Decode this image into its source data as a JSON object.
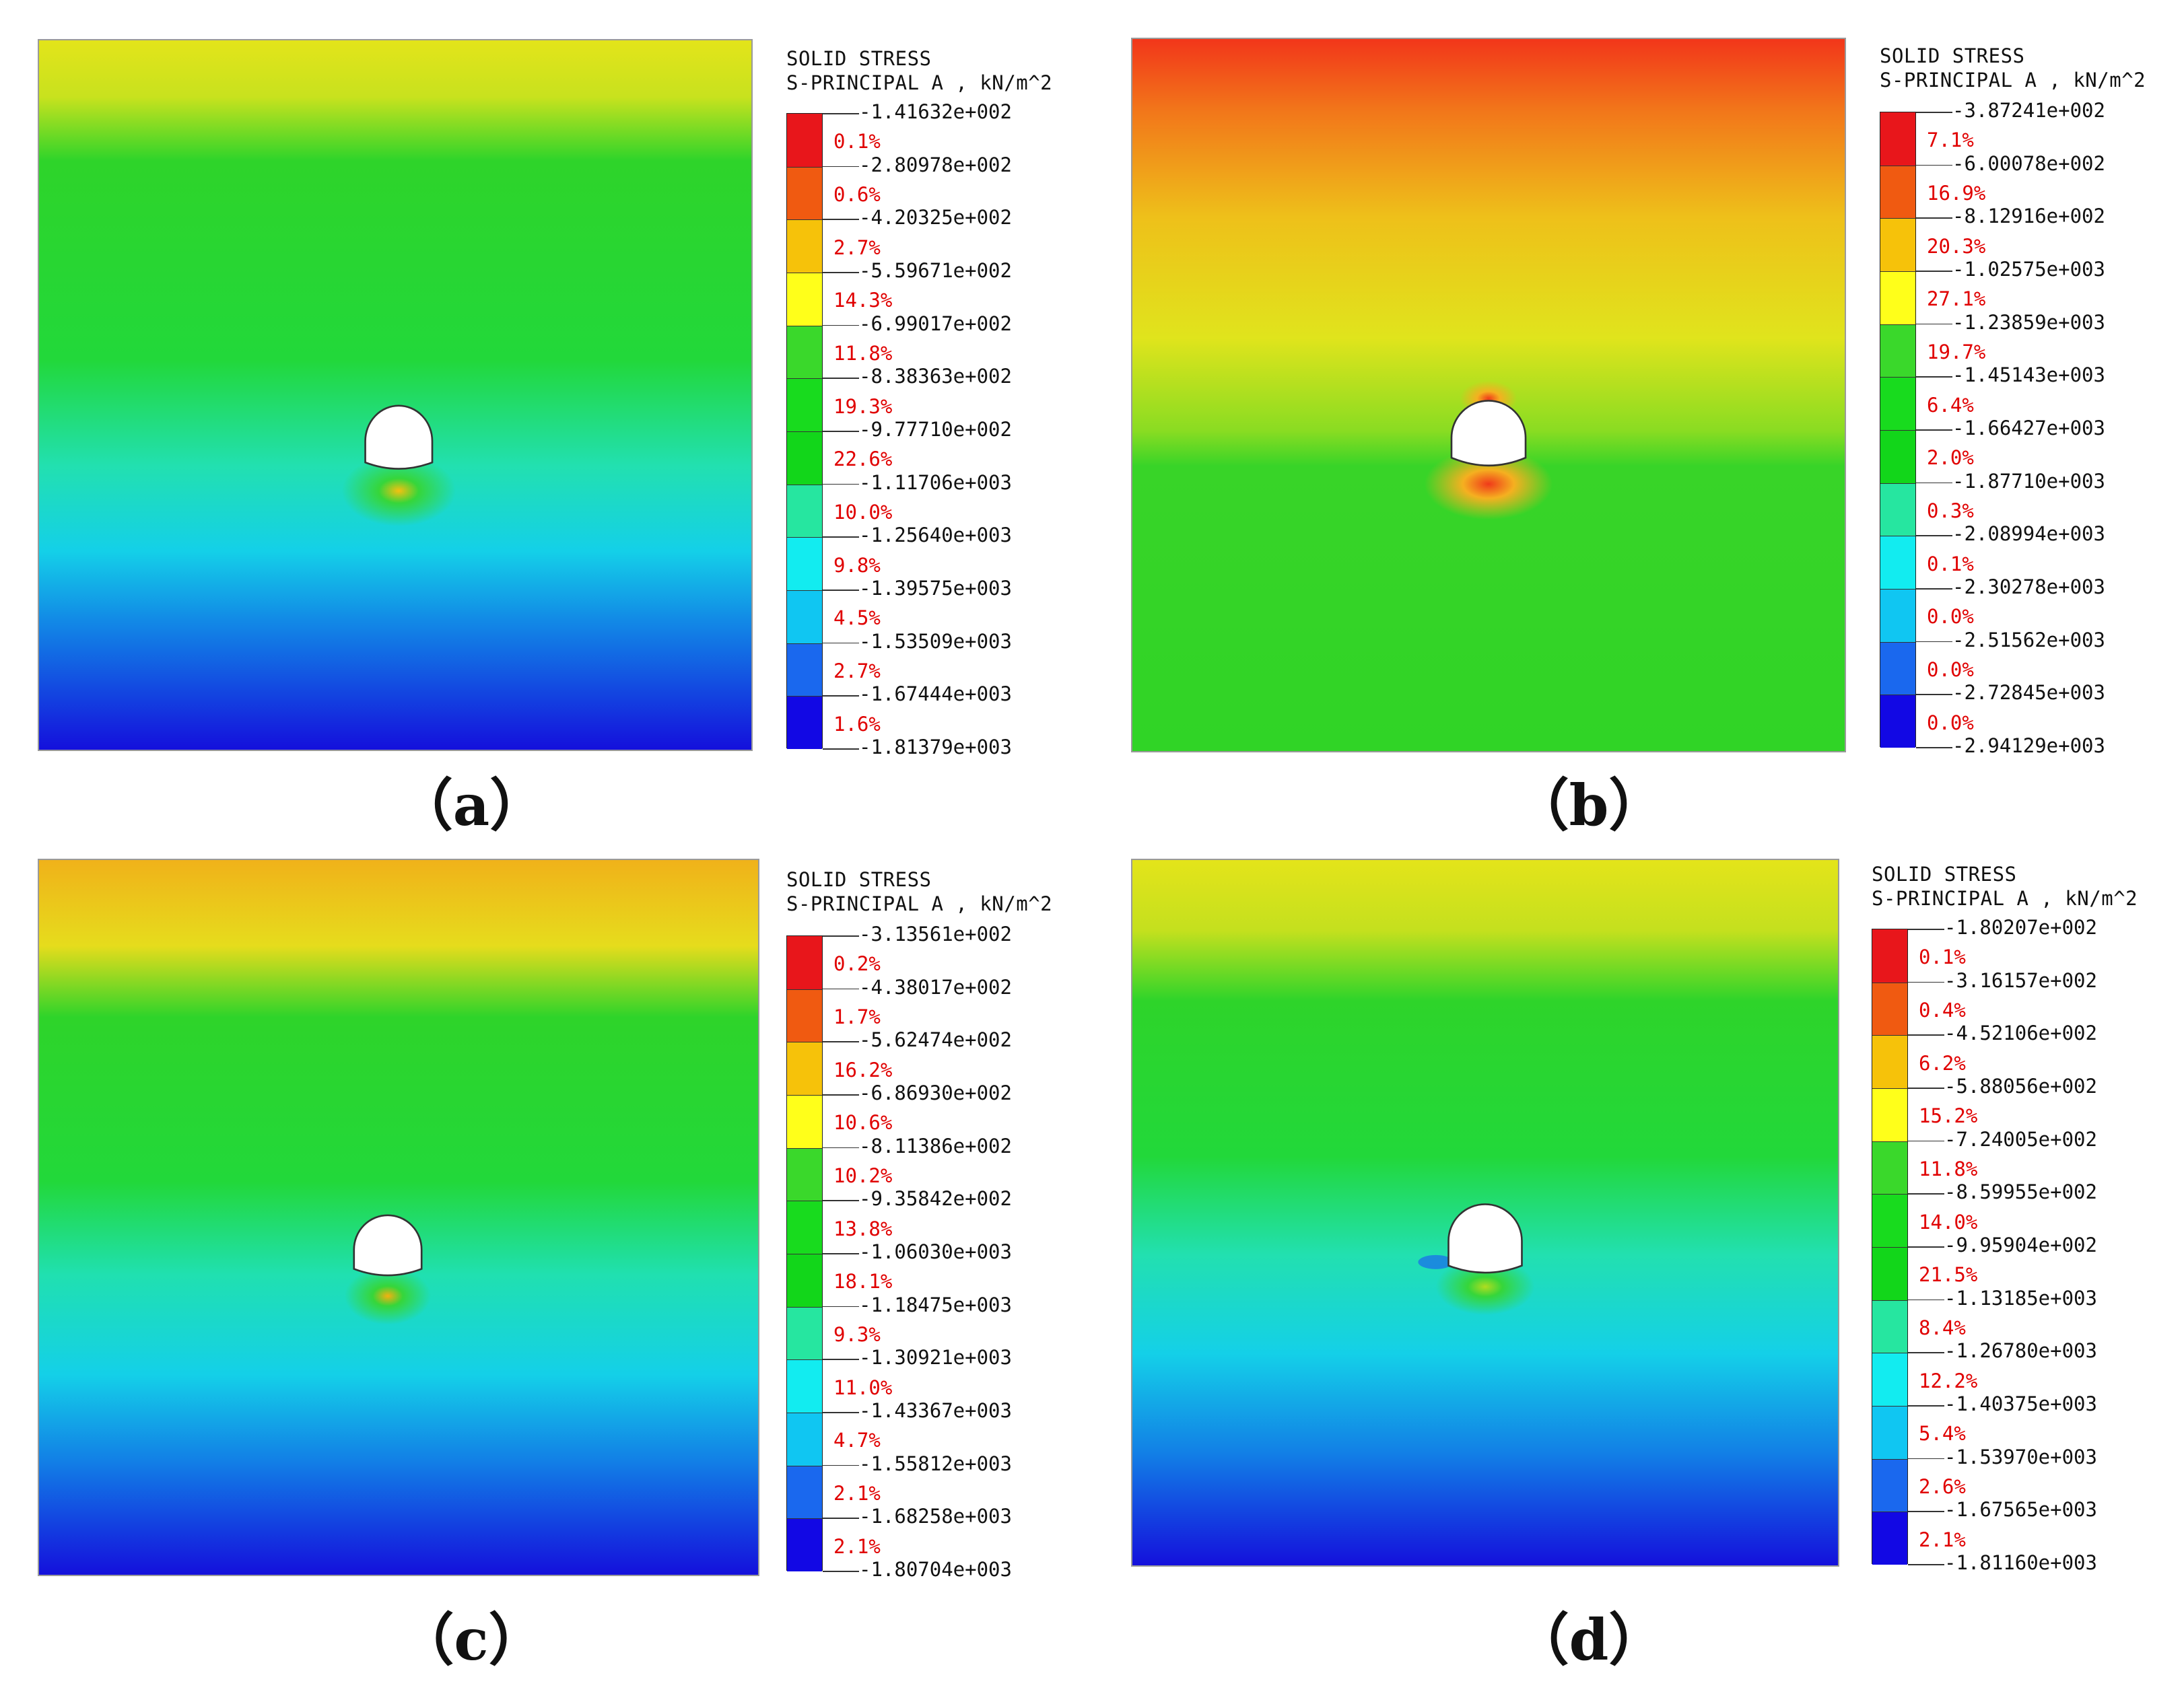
{
  "colors": [
    "#e8161b",
    "#f05a11",
    "#f6c20a",
    "#ffff1a",
    "#3ad82b",
    "#18db1e",
    "#12d61a",
    "#26e6a0",
    "#12ecf0",
    "#10c6f2",
    "#1a68ee",
    "#1208e4"
  ],
  "panels": [
    {
      "caption": "（a）",
      "legend": {
        "title1": "SOLID STRESS",
        "title2": "S-PRINCIPAL A , kN/m^2",
        "ticks": [
          "-1.41632e+002",
          "-2.80978e+002",
          "-4.20325e+002",
          "-5.59671e+002",
          "-6.99017e+002",
          "-8.38363e+002",
          "-9.77710e+002",
          "-1.11706e+003",
          "-1.25640e+003",
          "-1.39575e+003",
          "-1.53509e+003",
          "-1.67444e+003",
          "-1.81379e+003"
        ],
        "percents": [
          "0.1%",
          "0.6%",
          "2.7%",
          "14.3%",
          "11.8%",
          "19.3%",
          "22.6%",
          "10.0%",
          "9.8%",
          "4.5%",
          "2.7%",
          "1.6%"
        ]
      }
    },
    {
      "caption": "（b）",
      "legend": {
        "title1": "SOLID STRESS",
        "title2": "S-PRINCIPAL A , kN/m^2",
        "ticks": [
          "-3.87241e+002",
          "-6.00078e+002",
          "-8.12916e+002",
          "-1.02575e+003",
          "-1.23859e+003",
          "-1.45143e+003",
          "-1.66427e+003",
          "-1.87710e+003",
          "-2.08994e+003",
          "-2.30278e+003",
          "-2.51562e+003",
          "-2.72845e+003",
          "-2.94129e+003"
        ],
        "percents": [
          "7.1%",
          "16.9%",
          "20.3%",
          "27.1%",
          "19.7%",
          "6.4%",
          "2.0%",
          "0.3%",
          "0.1%",
          "0.0%",
          "0.0%",
          "0.0%"
        ]
      }
    },
    {
      "caption": "（c）",
      "legend": {
        "title1": "SOLID STRESS",
        "title2": "S-PRINCIPAL A , kN/m^2",
        "ticks": [
          "-3.13561e+002",
          "-4.38017e+002",
          "-5.62474e+002",
          "-6.86930e+002",
          "-8.11386e+002",
          "-9.35842e+002",
          "-1.06030e+003",
          "-1.18475e+003",
          "-1.30921e+003",
          "-1.43367e+003",
          "-1.55812e+003",
          "-1.68258e+003",
          "-1.80704e+003"
        ],
        "percents": [
          "0.2%",
          "1.7%",
          "16.2%",
          "10.6%",
          "10.2%",
          "13.8%",
          "18.1%",
          "9.3%",
          "11.0%",
          "4.7%",
          "2.1%",
          "2.1%"
        ]
      }
    },
    {
      "caption": "（d）",
      "legend": {
        "title1": "SOLID STRESS",
        "title2": "S-PRINCIPAL A , kN/m^2",
        "ticks": [
          "-1.80207e+002",
          "-3.16157e+002",
          "-4.52106e+002",
          "-5.88056e+002",
          "-7.24005e+002",
          "-8.59955e+002",
          "-9.95904e+002",
          "-1.13185e+003",
          "-1.26780e+003",
          "-1.40375e+003",
          "-1.53970e+003",
          "-1.67565e+003",
          "-1.81160e+003"
        ],
        "percents": [
          "0.1%",
          "0.4%",
          "6.2%",
          "15.2%",
          "11.8%",
          "14.0%",
          "21.5%",
          "8.4%",
          "12.2%",
          "5.4%",
          "2.6%",
          "2.1%"
        ]
      }
    }
  ]
}
